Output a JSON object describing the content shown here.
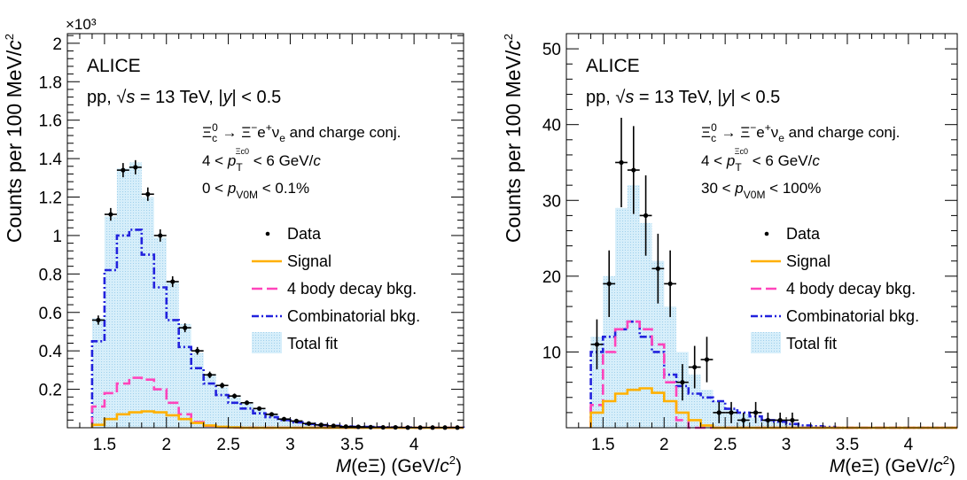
{
  "chart_data": [
    {
      "type": "histogram",
      "collaboration": "ALICE",
      "system": "pp, √s = 13 TeV, |y| < 0.5",
      "system_parts": {
        "pre": "pp, ",
        "sqrt": "√",
        "s": "s",
        " eq": " = 13 TeV, |",
        "y": "y",
        "post": "| < 0.5"
      },
      "decay": "Ξc0 → Ξ−e+νe and charge conj.",
      "pt_range": "4 < pT < 6 GeV/c",
      "mult_range": "0 < pV0M < 0.1%",
      "mult_low": "0",
      "mult_high": "0.1%",
      "ylabel": "Counts per 100 MeV/c2",
      "xlabel": "M(eΞ) (GeV/c2)",
      "y_multiplier": "×10³",
      "xlim": [
        1.2,
        4.4
      ],
      "ylim": [
        0,
        2050
      ],
      "x_ticks": [
        1.5,
        2,
        2.5,
        3,
        3.5,
        4
      ],
      "x_tick_labels": [
        "1.5",
        "2",
        "2.5",
        "3",
        "3.5",
        "4"
      ],
      "y_ticks": [
        200,
        400,
        600,
        800,
        1000,
        1200,
        1400,
        1600,
        1800,
        2000
      ],
      "y_tick_labels": [
        "0.2",
        "0.4",
        "0.6",
        "0.8",
        "1",
        "1.2",
        "1.4",
        "1.6",
        "1.8",
        "2"
      ],
      "bin_edges": [
        1.4,
        1.5,
        1.6,
        1.7,
        1.8,
        1.9,
        2.0,
        2.1,
        2.2,
        2.3,
        2.4,
        2.5,
        2.6,
        2.7,
        2.8,
        2.9,
        3.0,
        3.1,
        3.2,
        3.3,
        3.4,
        3.5,
        3.6,
        3.7,
        3.8,
        3.9,
        4.0,
        4.1,
        4.2,
        4.3,
        4.4
      ],
      "data": {
        "x": [
          1.45,
          1.55,
          1.65,
          1.75,
          1.85,
          1.95,
          2.05,
          2.15,
          2.25,
          2.35,
          2.45,
          2.55,
          2.65,
          2.75,
          2.85,
          2.95,
          3.05,
          3.15,
          3.25,
          3.35,
          3.45,
          3.55,
          3.65,
          3.75,
          3.85,
          3.95,
          4.05,
          4.15,
          4.25,
          4.35
        ],
        "y": [
          560,
          1110,
          1340,
          1355,
          1215,
          1000,
          760,
          520,
          400,
          275,
          220,
          165,
          130,
          100,
          70,
          45,
          35,
          22,
          15,
          10,
          6,
          5,
          3,
          2,
          2,
          1,
          1,
          1,
          1,
          1
        ],
        "err": [
          24,
          33,
          37,
          37,
          35,
          32,
          28,
          23,
          20,
          17,
          15,
          13,
          11,
          10,
          8,
          7,
          6,
          5,
          4,
          3,
          3,
          2,
          2,
          1,
          1,
          1,
          1,
          1,
          1,
          1
        ]
      },
      "total_fit": [
        570,
        1100,
        1350,
        1380,
        1200,
        990,
        760,
        540,
        390,
        280,
        210,
        160,
        125,
        95,
        70,
        50,
        35,
        25,
        18,
        12,
        8,
        6,
        4,
        3,
        2,
        2,
        1,
        1,
        1,
        1
      ],
      "combinatorial": [
        450,
        820,
        1000,
        1030,
        900,
        730,
        560,
        420,
        310,
        230,
        170,
        130,
        100,
        75,
        55,
        40,
        28,
        20,
        14,
        10,
        7,
        5,
        4,
        3,
        2,
        2,
        1,
        1,
        1,
        1
      ],
      "four_body": [
        110,
        180,
        230,
        260,
        250,
        200,
        130,
        70,
        30,
        10,
        3,
        1,
        0,
        0,
        0,
        0,
        0,
        0,
        0,
        0,
        0,
        0,
        0,
        0,
        0,
        0,
        0,
        0,
        0,
        0
      ],
      "signal": [
        15,
        45,
        70,
        80,
        85,
        80,
        65,
        45,
        25,
        12,
        5,
        2,
        0,
        0,
        0,
        0,
        0,
        0,
        0,
        0,
        0,
        0,
        0,
        0,
        0,
        0,
        0,
        0,
        0,
        0
      ],
      "legend": [
        "Data",
        "Signal",
        "4 body decay bkg.",
        "Combinatorial bkg.",
        "Total fit"
      ],
      "colors": {
        "signal": "#ffb000",
        "four_body": "#ff44bb",
        "combinatorial": "#2222dd",
        "total_fit": "#bfe3f5",
        "data": "#000000"
      }
    },
    {
      "type": "histogram",
      "collaboration": "ALICE",
      "system": "pp, √s = 13 TeV, |y| < 0.5",
      "decay": "Ξc0 → Ξ−e+νe and charge conj.",
      "pt_range": "4 < pT < 6 GeV/c",
      "mult_range": "30 < pV0M < 100%",
      "mult_low": "30",
      "mult_high": "100%",
      "ylabel": "Counts per 100 MeV/c2",
      "xlabel": "M(eΞ) (GeV/c2)",
      "xlim": [
        1.2,
        4.4
      ],
      "ylim": [
        0,
        52
      ],
      "x_ticks": [
        1.5,
        2,
        2.5,
        3,
        3.5,
        4
      ],
      "x_tick_labels": [
        "1.5",
        "2",
        "2.5",
        "3",
        "3.5",
        "4"
      ],
      "y_ticks": [
        10,
        20,
        30,
        40,
        50
      ],
      "y_tick_labels": [
        "10",
        "20",
        "30",
        "40",
        "50"
      ],
      "bin_edges": [
        1.4,
        1.5,
        1.6,
        1.7,
        1.8,
        1.9,
        2.0,
        2.1,
        2.2,
        2.3,
        2.4,
        2.5,
        2.6,
        2.7,
        2.8,
        2.9,
        3.0,
        3.1,
        3.2,
        3.3,
        3.4,
        3.5,
        3.6,
        3.7,
        3.8,
        3.9,
        4.0,
        4.1,
        4.2,
        4.3,
        4.4
      ],
      "data": {
        "x": [
          1.45,
          1.55,
          1.65,
          1.75,
          1.85,
          1.95,
          2.05,
          2.15,
          2.25,
          2.35,
          2.45,
          2.55,
          2.65,
          2.75,
          2.85,
          2.95,
          3.05
        ],
        "y": [
          11,
          19,
          35,
          34,
          28,
          21,
          19,
          6,
          8,
          9,
          2,
          2,
          1,
          2,
          1,
          1,
          1
        ],
        "err": [
          3.3,
          4.4,
          5.9,
          5.8,
          5.3,
          4.6,
          4.4,
          2.4,
          2.8,
          3.0,
          1.4,
          1.4,
          1.0,
          1.4,
          1.0,
          1.0,
          1.0
        ]
      },
      "total_fit": [
        12,
        20,
        29,
        32,
        27,
        22,
        16,
        10,
        7,
        5,
        3.5,
        2.5,
        1.8,
        1.3,
        0.9,
        0.7,
        0.5,
        0.3,
        0.2,
        0.1,
        0,
        0,
        0,
        0,
        0,
        0,
        0,
        0,
        0,
        0
      ],
      "combinatorial": [
        10,
        12,
        13,
        14,
        12,
        10,
        7,
        5.5,
        4.5,
        4,
        3.5,
        2.5,
        2,
        1.5,
        1,
        0.8,
        0.5,
        0.3,
        0.2,
        0.1,
        0,
        0,
        0,
        0,
        0,
        0,
        0,
        0,
        0,
        0
      ],
      "four_body": [
        3,
        10,
        13,
        14,
        13,
        11,
        6,
        1,
        0,
        0,
        0,
        0,
        0,
        0,
        0,
        0,
        0,
        0,
        0,
        0,
        0,
        0,
        0,
        0,
        0,
        0,
        0,
        0,
        0,
        0
      ],
      "signal": [
        2,
        3.5,
        4.5,
        5,
        5.2,
        4.6,
        3.5,
        2,
        1,
        0.3,
        0,
        0,
        0,
        0,
        0,
        0,
        0,
        0,
        0,
        0,
        0,
        0,
        0,
        0,
        0,
        0,
        0,
        0,
        0,
        0
      ],
      "legend": [
        "Data",
        "Signal",
        "4 body decay bkg.",
        "Combinatorial bkg.",
        "Total fit"
      ],
      "colors": {
        "signal": "#ffb000",
        "four_body": "#ff44bb",
        "combinatorial": "#2222dd",
        "total_fit": "#bfe3f5",
        "data": "#000000"
      }
    }
  ]
}
